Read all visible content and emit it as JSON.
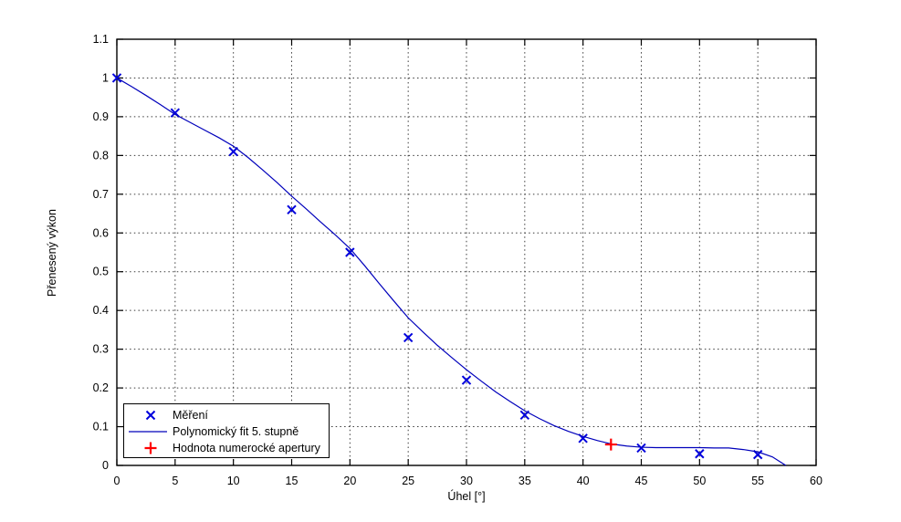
{
  "chart_data": {
    "type": "line",
    "title": "",
    "xlabel": "Úhel [°]",
    "ylabel": "Přenesený výkon",
    "xlim": [
      0,
      60
    ],
    "ylim": [
      0,
      1.1
    ],
    "xticks": [
      0,
      5,
      10,
      15,
      20,
      25,
      30,
      35,
      40,
      45,
      50,
      55,
      60
    ],
    "xtick_labels": [
      "0",
      "5",
      "10",
      "15",
      "20",
      "25",
      "30",
      "35",
      "40",
      "45",
      "50",
      "55",
      "60"
    ],
    "yticks": [
      0,
      0.1,
      0.2,
      0.3,
      0.4,
      0.5,
      0.6,
      0.7,
      0.8,
      0.9,
      1,
      1.1
    ],
    "ytick_labels": [
      "0",
      "0.1",
      "0.2",
      "0.3",
      "0.4",
      "0.5",
      "0.6",
      "0.7",
      "0.8",
      "0.9",
      "1",
      "1.1"
    ],
    "grid": "dotted",
    "background": "#ffffff",
    "axis_color": "#000000",
    "grid_color": "#3a3a3a",
    "legend_position": "bottom-left",
    "series": [
      {
        "name": "Měření",
        "type": "scatter",
        "marker": "x",
        "color": "#0000dd",
        "x": [
          0,
          5,
          10,
          15,
          20,
          25,
          30,
          35,
          40,
          45,
          50,
          55
        ],
        "y": [
          1.0,
          0.91,
          0.81,
          0.66,
          0.55,
          0.33,
          0.22,
          0.13,
          0.07,
          0.045,
          0.03,
          0.028
        ]
      },
      {
        "name": "Polynomický fit 5. stupně",
        "type": "line",
        "color": "#0000bb",
        "x": [
          0,
          1.25,
          2.5,
          3.75,
          5,
          6.25,
          7.5,
          8.75,
          10,
          11.25,
          12.5,
          13.75,
          15,
          16.25,
          17.5,
          18.75,
          20,
          21.25,
          22.5,
          23.75,
          25,
          26.25,
          27.5,
          28.75,
          30,
          31.25,
          32.5,
          33.75,
          35,
          36.25,
          37.5,
          38.75,
          40,
          41.25,
          42.5,
          43.75,
          45,
          46.25,
          47.5,
          48.75,
          50,
          51.25,
          52.5,
          53.75,
          55,
          56.25,
          57.4
        ],
        "y": [
          1.0,
          0.978,
          0.955,
          0.931,
          0.906,
          0.886,
          0.866,
          0.846,
          0.824,
          0.795,
          0.763,
          0.73,
          0.695,
          0.662,
          0.628,
          0.595,
          0.56,
          0.516,
          0.47,
          0.425,
          0.381,
          0.345,
          0.31,
          0.278,
          0.247,
          0.218,
          0.19,
          0.165,
          0.141,
          0.121,
          0.103,
          0.088,
          0.075,
          0.064,
          0.055,
          0.05,
          0.047,
          0.046,
          0.046,
          0.046,
          0.046,
          0.045,
          0.045,
          0.041,
          0.035,
          0.022,
          0.0
        ]
      },
      {
        "name": "Hodnota numerocké apertury",
        "type": "scatter",
        "marker": "+",
        "color": "#ff0000",
        "x": [
          42.4
        ],
        "y": [
          0.054
        ]
      }
    ]
  }
}
